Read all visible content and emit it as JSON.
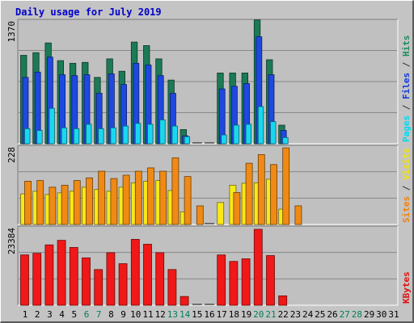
{
  "chart_data": {
    "type": "bar",
    "title": "Daily usage for July 2019",
    "days": [
      "1",
      "2",
      "3",
      "4",
      "5",
      "6",
      "7",
      "8",
      "9",
      "10",
      "11",
      "12",
      "13",
      "14",
      "15",
      "16",
      "17",
      "18",
      "19",
      "20",
      "21",
      "22",
      "23",
      "24",
      "25",
      "26",
      "27",
      "28",
      "29",
      "30",
      "31"
    ],
    "weekend_days": [
      "6",
      "7",
      "13",
      "14",
      "20",
      "21",
      "27",
      "28"
    ],
    "panels": [
      {
        "name": "hits-files-pages",
        "max_label": "1370",
        "ylim": [
          0,
          1370
        ],
        "right_label_parts": [
          {
            "text": "Pages",
            "color": "#00d8f0"
          },
          {
            "text": " / ",
            "color": "#333333"
          },
          {
            "text": "Files",
            "color": "#1038d8"
          },
          {
            "text": " / ",
            "color": "#333333"
          },
          {
            "text": "Hits",
            "color": "#1c8c5c"
          }
        ],
        "series": [
          {
            "name": "Hits",
            "color": "#1c7a56",
            "values": [
              1000,
              1030,
              1140,
              940,
              910,
              920,
              750,
              960,
              820,
              1150,
              1110,
              960,
              720,
              160,
              0,
              0,
              800,
              800,
              800,
              1400,
              950,
              210,
              0,
              0,
              0,
              0,
              0,
              0,
              0,
              0,
              0
            ]
          },
          {
            "name": "Files",
            "color": "#1e48e0",
            "values": [
              750,
              810,
              980,
              780,
              770,
              780,
              570,
              790,
              670,
              910,
              890,
              770,
              570,
              90,
              0,
              0,
              620,
              650,
              680,
              1210,
              780,
              150,
              0,
              0,
              0,
              0,
              0,
              0,
              0,
              0,
              0
            ]
          },
          {
            "name": "Pages",
            "color": "#18d8f0",
            "values": [
              170,
              150,
              400,
              180,
              170,
              220,
              170,
              180,
              200,
              230,
              220,
              270,
              200,
              80,
              0,
              0,
              100,
              210,
              220,
              420,
              250,
              70,
              0,
              0,
              0,
              0,
              0,
              0,
              0,
              0,
              0
            ]
          }
        ]
      },
      {
        "name": "visits-sites",
        "max_label": "228",
        "ylim": [
          0,
          228
        ],
        "right_label_parts": [
          {
            "text": "Sites",
            "color": "#f08010"
          },
          {
            "text": " / ",
            "color": "#333333"
          },
          {
            "text": "Visits",
            "color": "#f0e010"
          }
        ],
        "series": [
          {
            "name": "Visits",
            "color": "#f8e818",
            "values": [
              92,
              100,
              90,
              95,
              100,
              112,
              105,
              100,
              112,
              125,
              130,
              132,
              102,
              38,
              0,
              0,
              66,
              118,
              124,
              125,
              136,
              46,
              0,
              0,
              0,
              0,
              0,
              0,
              0,
              0,
              0
            ]
          },
          {
            "name": "Sites",
            "color": "#f08a14",
            "values": [
              130,
              132,
              112,
              118,
              132,
              140,
              160,
              138,
              148,
              160,
              170,
              160,
              200,
              144,
              56,
              0,
              0,
              96,
              184,
              210,
              180,
              230,
              56,
              0,
              0,
              0,
              0,
              0,
              0,
              0,
              0
            ]
          }
        ]
      },
      {
        "name": "kbytes",
        "max_label": "23384",
        "ylim": [
          0,
          23384
        ],
        "right_label_parts": [
          {
            "text": "KBytes",
            "color": "#e01010"
          }
        ],
        "series": [
          {
            "name": "KBytes",
            "color": "#f01818",
            "values": [
              15500,
              16000,
              18600,
              20000,
              17800,
              14600,
              11000,
              16200,
              12800,
              20300,
              18800,
              16200,
              11000,
              2700,
              0,
              0,
              15500,
              13500,
              14300,
              23400,
              15300,
              2900,
              0,
              0,
              0,
              0,
              0,
              0,
              0,
              0,
              0
            ]
          }
        ]
      }
    ]
  }
}
